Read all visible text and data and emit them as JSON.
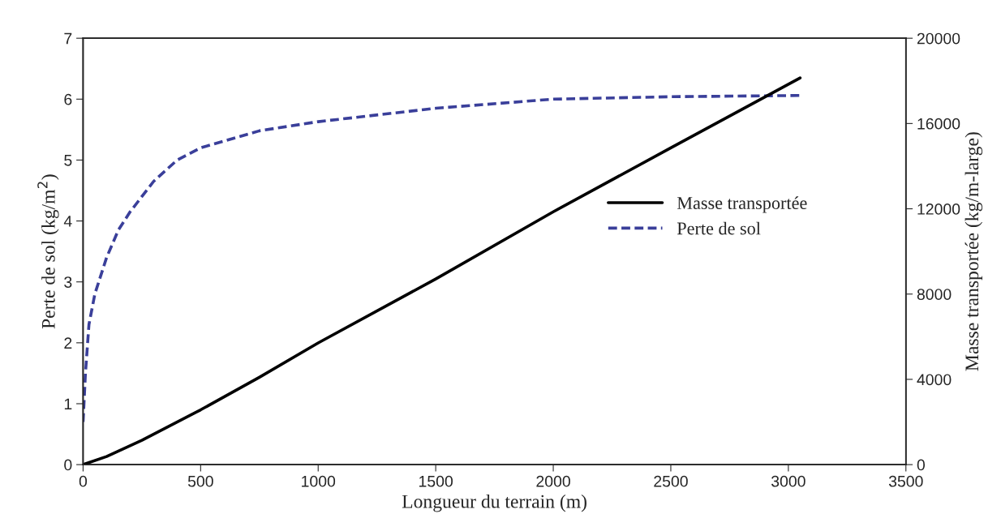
{
  "chart_data": {
    "type": "line",
    "xlabel": "Longueur du terrain (m)",
    "ylabel": "Perte de sol (kg/m$^{2}$)",
    "y2label": "Masse transportée (kg/m-large)",
    "xlim": [
      0,
      3500
    ],
    "xticks": [
      0,
      500,
      1000,
      1500,
      2000,
      2500,
      3000,
      3500
    ],
    "ylim": [
      0,
      7
    ],
    "yticks": [
      0,
      1,
      2,
      3,
      4,
      5,
      6,
      7
    ],
    "y2lim": [
      0,
      20000
    ],
    "y2ticks": [
      0,
      4000,
      8000,
      12000,
      16000,
      20000
    ],
    "legend": "right",
    "grid": false,
    "series": [
      {
        "name": "Masse transportée",
        "color": "#000000",
        "line_style": "solid",
        "axis": "y2",
        "x": [
          0,
          100,
          250,
          500,
          750,
          1000,
          1500,
          2000,
          2500,
          3050
        ],
        "values": [
          0,
          380,
          1140,
          2570,
          4100,
          5710,
          8710,
          11860,
          14860,
          18140
        ]
      },
      {
        "name": "Perte de sol",
        "color": "#3a3f9a",
        "line_style": "dashed",
        "axis": "y",
        "x": [
          0,
          10,
          25,
          50,
          100,
          150,
          200,
          300,
          400,
          500,
          750,
          1000,
          1500,
          2000,
          2500,
          3050
        ],
        "values": [
          0.7,
          1.5,
          2.3,
          2.8,
          3.4,
          3.85,
          4.15,
          4.65,
          5.0,
          5.2,
          5.48,
          5.63,
          5.85,
          6.0,
          6.04,
          6.06
        ]
      }
    ]
  }
}
